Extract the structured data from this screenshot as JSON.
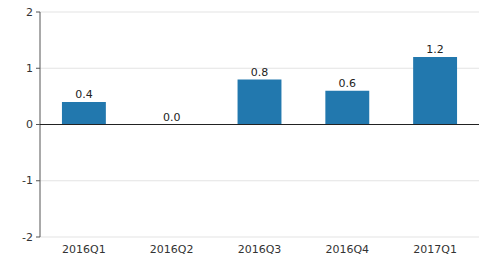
{
  "chart_data": {
    "type": "bar",
    "categories": [
      "2016Q1",
      "2016Q2",
      "2016Q3",
      "2016Q4",
      "2017Q1"
    ],
    "values": [
      0.4,
      0.0,
      0.8,
      0.6,
      1.2
    ],
    "value_labels": [
      "0.4",
      "0.0",
      "0.8",
      "0.6",
      "1.2"
    ],
    "color": "#2278ae",
    "ylim": [
      -2,
      2
    ],
    "yticks": [
      -2,
      -1,
      0,
      1,
      2
    ],
    "grid": true,
    "data_labels": true
  }
}
